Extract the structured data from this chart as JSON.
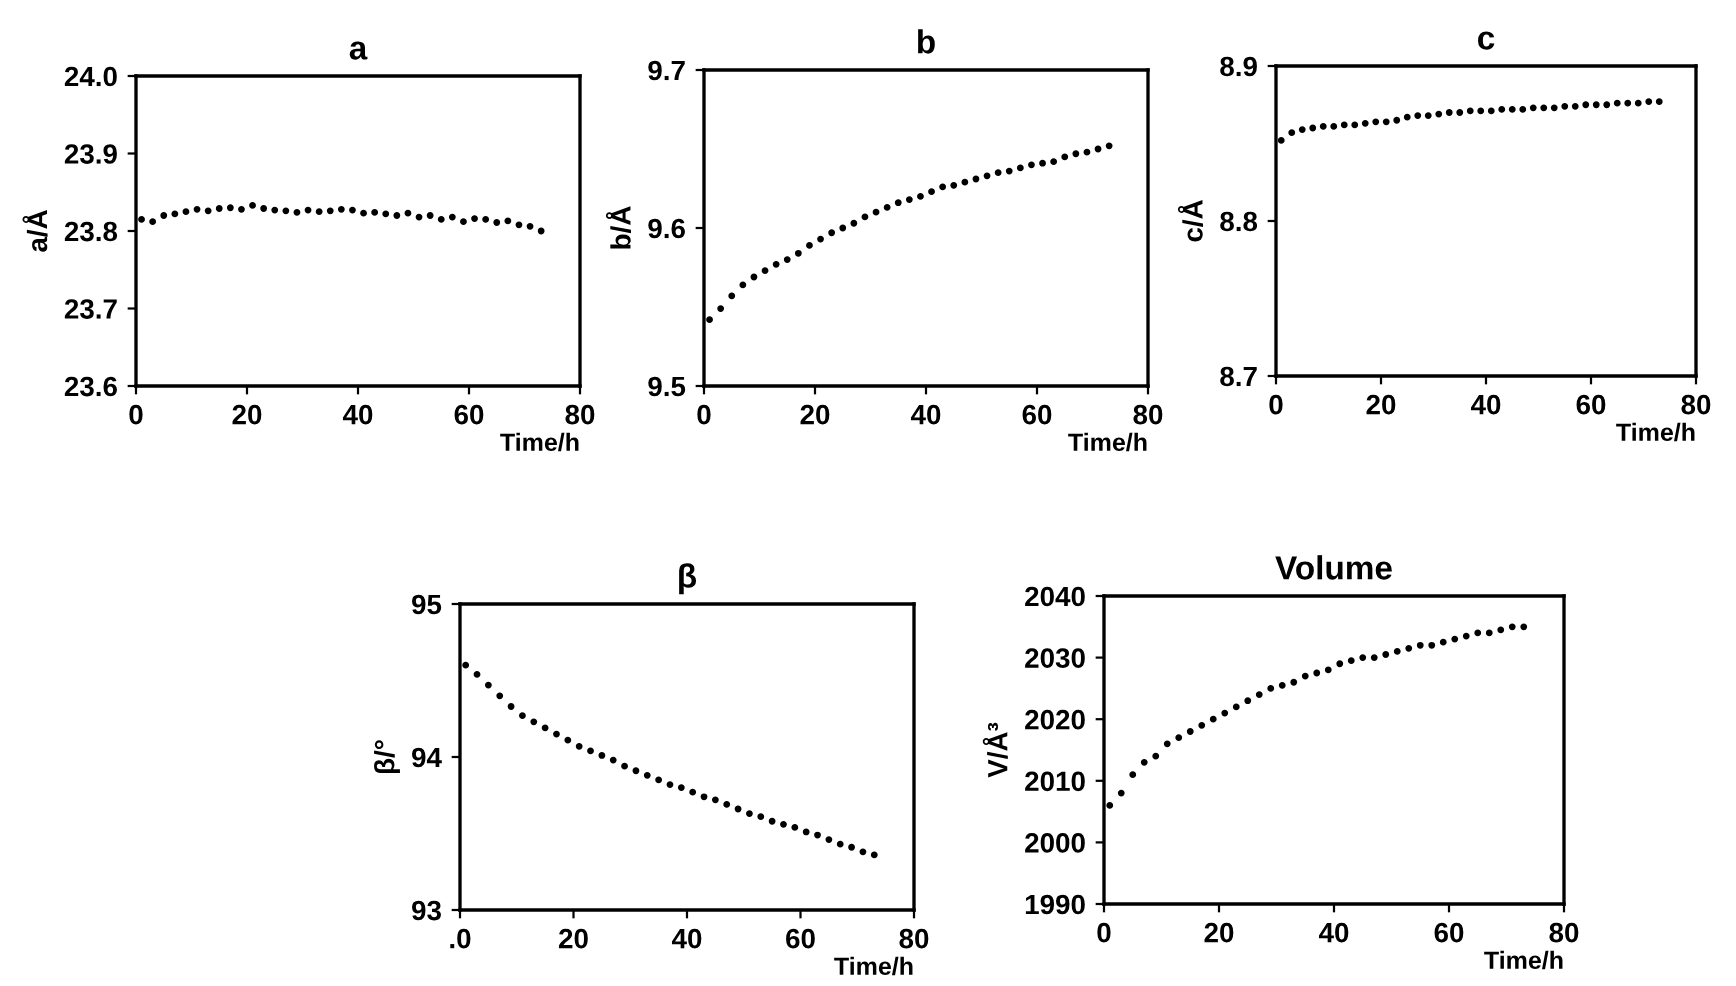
{
  "chart_data": [
    {
      "type": "scatter",
      "title": "a",
      "xlabel": "Time/h",
      "ylabel": "a/Å",
      "xlim": [
        0,
        80
      ],
      "xticks": [
        0,
        20,
        40,
        60,
        80
      ],
      "ylim": [
        23.6,
        24.0
      ],
      "yticks": [
        {
          "value": 23.6,
          "label": "23.6"
        },
        {
          "value": 23.7,
          "label": "23.7"
        },
        {
          "value": 23.8,
          "label": "23.8"
        },
        {
          "value": 23.9,
          "label": "23.9"
        },
        {
          "value": 24.0,
          "label": "24.0"
        }
      ],
      "marker": "circle",
      "grid": false,
      "legend": false,
      "series": [
        {
          "color": "#000000",
          "x": [
            1,
            3,
            5,
            7,
            9,
            11,
            13,
            15,
            17,
            19,
            21,
            23,
            25,
            27,
            29,
            31,
            33,
            35,
            37,
            39,
            41,
            43,
            45,
            47,
            49,
            51,
            53,
            55,
            57,
            59,
            61,
            63,
            65,
            67,
            69,
            71,
            73
          ],
          "values": [
            23.815,
            23.812,
            23.82,
            23.822,
            23.825,
            23.828,
            23.826,
            23.829,
            23.83,
            23.828,
            23.833,
            23.829,
            23.827,
            23.826,
            23.824,
            23.827,
            23.825,
            23.826,
            23.828,
            23.827,
            23.823,
            23.824,
            23.822,
            23.82,
            23.823,
            23.818,
            23.82,
            23.815,
            23.818,
            23.812,
            23.816,
            23.815,
            23.811,
            23.813,
            23.808,
            23.806,
            23.8
          ]
        }
      ]
    },
    {
      "type": "scatter",
      "title": "b",
      "xlabel": "Time/h",
      "ylabel": "b/Å",
      "xlim": [
        0,
        80
      ],
      "xticks": [
        0,
        20,
        40,
        60,
        80
      ],
      "ylim": [
        9.5,
        9.7
      ],
      "yticks": [
        9.5,
        9.6,
        9.7
      ],
      "marker": "circle",
      "grid": false,
      "legend": false,
      "series": [
        {
          "color": "#000000",
          "x": [
            1,
            3,
            5,
            7,
            9,
            11,
            13,
            15,
            17,
            19,
            21,
            23,
            25,
            27,
            29,
            31,
            33,
            35,
            37,
            39,
            41,
            43,
            45,
            47,
            49,
            51,
            53,
            55,
            57,
            59,
            61,
            63,
            65,
            67,
            69,
            71,
            73
          ],
          "values": [
            9.542,
            9.549,
            9.557,
            9.564,
            9.569,
            9.573,
            9.577,
            9.58,
            9.584,
            9.589,
            9.593,
            9.597,
            9.6,
            9.603,
            9.607,
            9.61,
            9.613,
            9.616,
            9.618,
            9.62,
            9.623,
            9.626,
            9.627,
            9.629,
            9.631,
            9.633,
            9.635,
            9.636,
            9.638,
            9.64,
            9.641,
            9.642,
            9.645,
            9.647,
            9.648,
            9.65,
            9.652
          ]
        }
      ]
    },
    {
      "type": "scatter",
      "title": "c",
      "xlabel": "Time/h",
      "ylabel": "c/Å",
      "xlim": [
        0,
        80
      ],
      "xticks": [
        0,
        20,
        40,
        60,
        80
      ],
      "ylim": [
        8.7,
        8.9
      ],
      "yticks": [
        8.7,
        8.8,
        8.9
      ],
      "marker": "circle",
      "grid": false,
      "legend": false,
      "series": [
        {
          "color": "#000000",
          "x": [
            1,
            3,
            5,
            7,
            9,
            11,
            13,
            15,
            17,
            19,
            21,
            23,
            25,
            27,
            29,
            31,
            33,
            35,
            37,
            39,
            41,
            43,
            45,
            47,
            49,
            51,
            53,
            55,
            57,
            59,
            61,
            63,
            65,
            67,
            69,
            71,
            73
          ],
          "values": [
            8.852,
            8.857,
            8.859,
            8.86,
            8.861,
            8.861,
            8.862,
            8.862,
            8.863,
            8.864,
            8.864,
            8.865,
            8.867,
            8.868,
            8.868,
            8.869,
            8.87,
            8.87,
            8.871,
            8.871,
            8.871,
            8.872,
            8.872,
            8.872,
            8.873,
            8.873,
            8.873,
            8.874,
            8.874,
            8.875,
            8.875,
            8.875,
            8.876,
            8.876,
            8.876,
            8.877,
            8.877
          ]
        }
      ]
    },
    {
      "type": "scatter",
      "title": "β",
      "xlabel": "Time/h",
      "ylabel": "β/°",
      "xlim": [
        0,
        80
      ],
      "xticks": [
        {
          "value": 0,
          "label": ".0"
        },
        20,
        40,
        60,
        80
      ],
      "ylim": [
        93,
        95
      ],
      "yticks": [
        93,
        94,
        95
      ],
      "marker": "circle",
      "grid": false,
      "legend": false,
      "series": [
        {
          "color": "#000000",
          "x": [
            1,
            3,
            5,
            7,
            9,
            11,
            13,
            15,
            17,
            19,
            21,
            23,
            25,
            27,
            29,
            31,
            33,
            35,
            37,
            39,
            41,
            43,
            45,
            47,
            49,
            51,
            53,
            55,
            57,
            59,
            61,
            63,
            65,
            67,
            69,
            71,
            73
          ],
          "values": [
            94.6,
            94.54,
            94.47,
            94.4,
            94.33,
            94.27,
            94.23,
            94.19,
            94.15,
            94.11,
            94.07,
            94.04,
            94.01,
            93.98,
            93.94,
            93.91,
            93.88,
            93.85,
            93.82,
            93.8,
            93.77,
            93.74,
            93.72,
            93.69,
            93.66,
            93.63,
            93.61,
            93.58,
            93.56,
            93.54,
            93.51,
            93.49,
            93.46,
            93.43,
            93.41,
            93.38,
            93.36
          ]
        }
      ]
    },
    {
      "type": "scatter",
      "title": "Volume",
      "xlabel": "Time/h",
      "ylabel": "V/Å³",
      "xlim": [
        0,
        80
      ],
      "xticks": [
        0,
        20,
        40,
        60,
        80
      ],
      "ylim": [
        1990,
        2040
      ],
      "yticks": [
        1990,
        2000,
        2010,
        2020,
        2030,
        2040
      ],
      "marker": "circle",
      "grid": false,
      "legend": false,
      "series": [
        {
          "color": "#000000",
          "x": [
            1,
            3,
            5,
            7,
            9,
            11,
            13,
            15,
            17,
            19,
            21,
            23,
            25,
            27,
            29,
            31,
            33,
            35,
            37,
            39,
            41,
            43,
            45,
            47,
            49,
            51,
            53,
            55,
            57,
            59,
            61,
            63,
            65,
            67,
            69,
            71,
            73
          ],
          "values": [
            2006,
            2008,
            2011,
            2013,
            2014,
            2016,
            2017,
            2018,
            2019,
            2020,
            2021,
            2022,
            2023,
            2024,
            2025,
            2025.5,
            2026,
            2027,
            2027.5,
            2028,
            2029,
            2029.5,
            2030,
            2030,
            2030.5,
            2031,
            2031.5,
            2032,
            2032,
            2032.5,
            2033,
            2033.5,
            2034,
            2034,
            2034.5,
            2035,
            2035
          ]
        }
      ]
    }
  ]
}
